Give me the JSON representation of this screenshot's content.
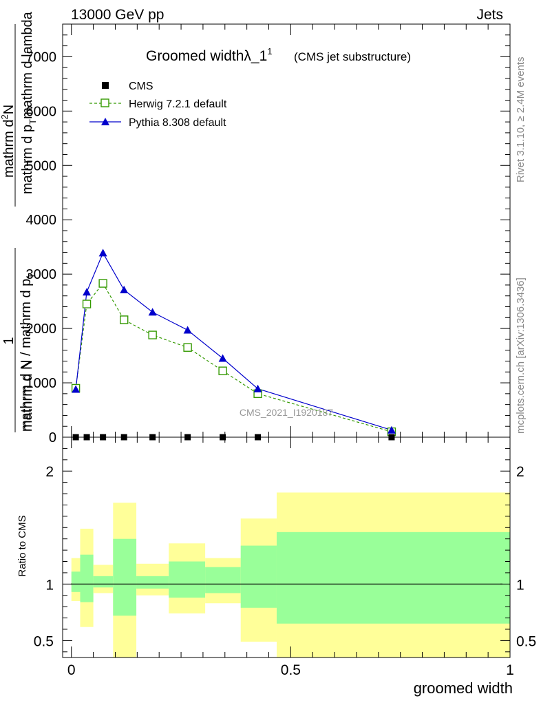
{
  "header": {
    "energy_label": "13000 GeV pp",
    "category_label": "Jets"
  },
  "side_labels": {
    "rivet": "Rivet 3.1.10, ≥ 2.4M events",
    "mcplots": "mcplots.cern.ch [arXiv:1306.3436]"
  },
  "colors": {
    "cms": "#000000",
    "herwig": "#339900",
    "pythia": "#0000cc",
    "band_outer": "#ffff99",
    "band_inner": "#99ff99"
  },
  "chart_data": [
    {
      "type": "line",
      "title": "Groomed widthλ_1",
      "title_superscript": "1",
      "subtitle": "(CMS jet substructure)",
      "ylabel_parts": {
        "prefix": "1",
        "fraction_top": "mathrm d N / mathrm d p",
        "fraction_top_sub": "T",
        "fraction_bottom": "mathrm d N",
        "left_top": "mathrm d",
        "left_top_sup": "2",
        "left_top_rest": "N",
        "left_bottom": "mathrm d p",
        "left_bottom_sub": "T",
        "left_bottom_rest": "mathrm d lambda"
      },
      "watermark": "CMS_2021_I1920187",
      "xlim": [
        -0.02,
        1.0
      ],
      "ylim": [
        0,
        7600
      ],
      "yticks": [
        0,
        1000,
        2000,
        3000,
        4000,
        5000,
        6000,
        7000
      ],
      "ytick_labels": [
        "0",
        "1000",
        "2000",
        "3000",
        "4000",
        "5000",
        "6000",
        "7000"
      ],
      "legend_position": "top-left",
      "series": [
        {
          "name": "CMS",
          "marker": "square",
          "x": [
            0.01,
            0.035,
            0.072,
            0.12,
            0.185,
            0.265,
            0.345,
            0.425,
            0.73
          ],
          "y": [
            0,
            0,
            0,
            0,
            0,
            0,
            0,
            0,
            0
          ]
        },
        {
          "name": "Herwig 7.2.1 default",
          "marker": "open-square",
          "x": [
            0.01,
            0.035,
            0.072,
            0.12,
            0.185,
            0.265,
            0.345,
            0.425,
            0.73
          ],
          "y": [
            900,
            2450,
            2830,
            2160,
            1880,
            1650,
            1220,
            800,
            100
          ]
        },
        {
          "name": "Pythia 8.308 default",
          "marker": "triangle",
          "x": [
            0.01,
            0.035,
            0.072,
            0.12,
            0.185,
            0.265,
            0.345,
            0.425,
            0.73
          ],
          "y": [
            880,
            2670,
            3390,
            2710,
            2300,
            1970,
            1450,
            890,
            130
          ]
        }
      ]
    },
    {
      "type": "area",
      "ylabel": "Ratio to CMS",
      "xlabel": "groomed width",
      "xlim": [
        -0.02,
        1.0
      ],
      "ylim": [
        0.35,
        2.3
      ],
      "xticks": [
        0,
        0.5,
        1
      ],
      "xtick_labels": [
        "0",
        "0.5",
        "1"
      ],
      "yticks": [
        0.5,
        1,
        2
      ],
      "ytick_labels": [
        "0.5",
        "1",
        "2"
      ],
      "reference_line": 1,
      "bins": [
        {
          "lo": 0.0,
          "hi": 0.02,
          "outer": [
            0.85,
            1.23
          ],
          "inner": [
            0.93,
            1.11
          ]
        },
        {
          "lo": 0.02,
          "hi": 0.05,
          "outer": [
            0.62,
            1.49
          ],
          "inner": [
            0.84,
            1.26
          ]
        },
        {
          "lo": 0.05,
          "hi": 0.095,
          "outer": [
            0.92,
            1.17
          ],
          "inner": [
            0.97,
            1.07
          ]
        },
        {
          "lo": 0.095,
          "hi": 0.148,
          "outer": [
            0.3,
            1.72
          ],
          "inner": [
            0.72,
            1.4
          ]
        },
        {
          "lo": 0.148,
          "hi": 0.222,
          "outer": [
            0.9,
            1.18
          ],
          "inner": [
            0.96,
            1.07
          ]
        },
        {
          "lo": 0.222,
          "hi": 0.305,
          "outer": [
            0.74,
            1.36
          ],
          "inner": [
            0.88,
            1.2
          ]
        },
        {
          "lo": 0.305,
          "hi": 0.386,
          "outer": [
            0.83,
            1.23
          ],
          "inner": [
            0.92,
            1.15
          ]
        },
        {
          "lo": 0.386,
          "hi": 0.468,
          "outer": [
            0.49,
            1.58
          ],
          "inner": [
            0.79,
            1.34
          ]
        },
        {
          "lo": 0.468,
          "hi": 1.0,
          "outer": [
            0.3,
            1.81
          ],
          "inner": [
            0.65,
            1.46
          ]
        }
      ]
    }
  ]
}
